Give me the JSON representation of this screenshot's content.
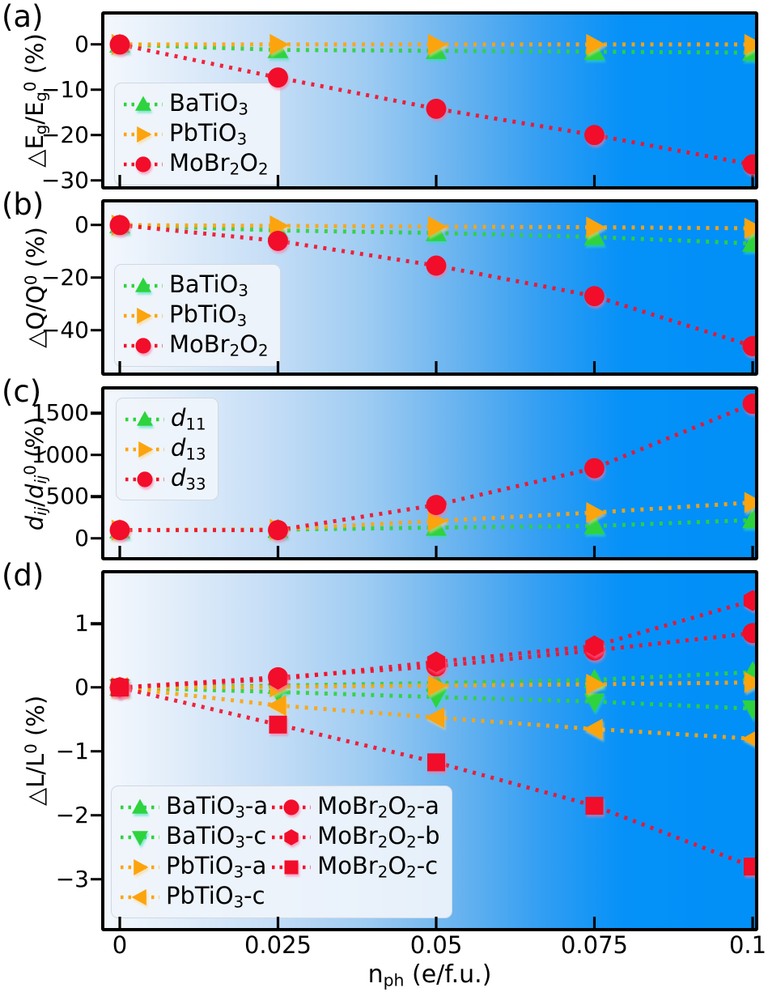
{
  "figure": {
    "xlabel_parts": [
      [
        "t",
        "n"
      ],
      [
        "s",
        "ph"
      ],
      [
        "t",
        " (e/f.u.)"
      ]
    ],
    "x_tick_labels": [
      "0",
      "0.025",
      "0.05",
      "0.075",
      "0.1"
    ],
    "colors": {
      "green": "#2ED33C",
      "orange": "#FCA40D",
      "red": "#F2112B",
      "panel_border": "#000000",
      "gradient_left": "#F4F8FD",
      "gradient_right": "#0090F7",
      "legend_bg": "#EFF4FB",
      "text": "#000000"
    }
  },
  "chart_data": {
    "type": "line",
    "x": [
      0,
      0.025,
      0.05,
      0.075,
      0.1
    ],
    "xlim": [
      -0.0025,
      0.1005
    ],
    "xlabel": "n_ph (e/f.u.)",
    "grid": false,
    "panels": [
      {
        "id": "a",
        "letter": "(a)",
        "ylabel": "dEg/Eg0 (%)",
        "ylabel_parts": [
          [
            "t",
            "△E"
          ],
          [
            "s",
            "g"
          ],
          [
            "t",
            "/E"
          ],
          [
            "s",
            "g"
          ],
          [
            "p",
            "0"
          ],
          [
            "t",
            " (%)"
          ]
        ],
        "ylim": [
          -31.3,
          6.6
        ],
        "yticks": [
          0,
          -10,
          -20,
          -30
        ],
        "legend_columns": 1,
        "series": [
          {
            "name": "BaTiO3",
            "label_parts": [
              [
                "t",
                "BaTiO"
              ],
              [
                "s",
                "3"
              ]
            ],
            "color": "green",
            "marker": "triangle-up",
            "values": [
              0,
              -1.2,
              -1.4,
              -1.6,
              -1.8
            ]
          },
          {
            "name": "PbTiO3",
            "label_parts": [
              [
                "t",
                "PbTiO"
              ],
              [
                "s",
                "3"
              ]
            ],
            "color": "orange",
            "marker": "triangle-right",
            "values": [
              0,
              0,
              0,
              0,
              0
            ]
          },
          {
            "name": "MoBr2O2",
            "label_parts": [
              [
                "t",
                "MoBr"
              ],
              [
                "s",
                "2"
              ],
              [
                "t",
                "O"
              ],
              [
                "s",
                "2"
              ]
            ],
            "color": "red",
            "marker": "circle",
            "values": [
              0,
              -7.3,
              -14.2,
              -20,
              -26.5
            ]
          }
        ]
      },
      {
        "id": "b",
        "letter": "(b)",
        "ylabel": "dQ/Q0 (%)",
        "ylabel_parts": [
          [
            "t",
            "△Q/Q"
          ],
          [
            "p",
            "0"
          ],
          [
            "t",
            " (%)"
          ]
        ],
        "ylim": [
          -56,
          8.6
        ],
        "yticks": [
          0,
          -20,
          -40
        ],
        "legend_columns": 1,
        "series": [
          {
            "name": "BaTiO3",
            "label_parts": [
              [
                "t",
                "BaTiO"
              ],
              [
                "s",
                "3"
              ]
            ],
            "color": "green",
            "marker": "triangle-up",
            "values": [
              0,
              -2,
              -3,
              -4.5,
              -7
            ]
          },
          {
            "name": "PbTiO3",
            "label_parts": [
              [
                "t",
                "PbTiO"
              ],
              [
                "s",
                "3"
              ]
            ],
            "color": "orange",
            "marker": "triangle-right",
            "values": [
              0,
              -0.3,
              -0.6,
              -0.8,
              -1.2
            ]
          },
          {
            "name": "MoBr2O2",
            "label_parts": [
              [
                "t",
                "MoBr"
              ],
              [
                "s",
                "2"
              ],
              [
                "t",
                "O"
              ],
              [
                "s",
                "2"
              ]
            ],
            "color": "red",
            "marker": "circle",
            "values": [
              0,
              -6,
              -15.4,
              -27,
              -46
            ]
          }
        ]
      },
      {
        "id": "c",
        "letter": "(c)",
        "ylabel": "dij/dij0 (%)",
        "ylabel_parts": [
          [
            "i",
            "d"
          ],
          [
            "si",
            "ij"
          ],
          [
            "t",
            "/"
          ],
          [
            "i",
            "d"
          ],
          [
            "si",
            "ij"
          ],
          [
            "p",
            "0"
          ],
          [
            "t",
            " (%)"
          ]
        ],
        "ylim": [
          -223,
          1781
        ],
        "yticks": [
          0,
          500,
          1000,
          1500
        ],
        "legend_columns": 1,
        "series": [
          {
            "name": "d11",
            "label_parts": [
              [
                "i",
                "d"
              ],
              [
                "s",
                "11"
              ]
            ],
            "color": "green",
            "marker": "triangle-up",
            "values": [
              100,
              105,
              130,
              150,
              220
            ]
          },
          {
            "name": "d13",
            "label_parts": [
              [
                "i",
                "d"
              ],
              [
                "s",
                "13"
              ]
            ],
            "color": "orange",
            "marker": "triangle-right",
            "values": [
              100,
              110,
              210,
              310,
              430
            ]
          },
          {
            "name": "d33",
            "label_parts": [
              [
                "i",
                "d"
              ],
              [
                "s",
                "33"
              ]
            ],
            "color": "red",
            "marker": "circle",
            "values": [
              100,
              100,
              400,
              840,
              1610
            ]
          }
        ]
      },
      {
        "id": "d",
        "letter": "(d)",
        "ylabel": "dL/L0 (%)",
        "ylabel_parts": [
          [
            "t",
            "△L/L"
          ],
          [
            "p",
            "0"
          ],
          [
            "t",
            " (%)"
          ]
        ],
        "ylim": [
          -3.76,
          1.785
        ],
        "yticks": [
          1,
          0,
          -1,
          -2,
          -3
        ],
        "legend_columns": 2,
        "series": [
          {
            "name": "BaTiO3-a",
            "label_parts": [
              [
                "t",
                "BaTiO"
              ],
              [
                "s",
                "3"
              ],
              [
                "t",
                "-a"
              ]
            ],
            "color": "green",
            "marker": "triangle-up",
            "values": [
              0,
              0.03,
              0.07,
              0.12,
              0.24
            ]
          },
          {
            "name": "BaTiO3-c",
            "label_parts": [
              [
                "t",
                "BaTiO"
              ],
              [
                "s",
                "3"
              ],
              [
                "t",
                "-c"
              ]
            ],
            "color": "green",
            "marker": "triangle-down",
            "values": [
              0,
              -0.07,
              -0.15,
              -0.22,
              -0.33
            ]
          },
          {
            "name": "PbTiO3-a",
            "label_parts": [
              [
                "t",
                "PbTiO"
              ],
              [
                "s",
                "3"
              ],
              [
                "t",
                "-a"
              ]
            ],
            "color": "orange",
            "marker": "triangle-right",
            "values": [
              0,
              0.01,
              0.03,
              0.05,
              0.08
            ]
          },
          {
            "name": "PbTiO3-c",
            "label_parts": [
              [
                "t",
                "PbTiO"
              ],
              [
                "s",
                "3"
              ],
              [
                "t",
                "-c"
              ]
            ],
            "color": "orange",
            "marker": "triangle-left",
            "values": [
              0,
              -0.28,
              -0.47,
              -0.65,
              -0.8
            ]
          },
          {
            "name": "MoBr2O2-a",
            "label_parts": [
              [
                "t",
                "MoBr"
              ],
              [
                "s",
                "2"
              ],
              [
                "t",
                "O"
              ],
              [
                "s",
                "2"
              ],
              [
                "t",
                "-a"
              ]
            ],
            "color": "red",
            "marker": "circle",
            "values": [
              0,
              0.16,
              0.33,
              0.58,
              0.85
            ]
          },
          {
            "name": "MoBr2O2-b",
            "label_parts": [
              [
                "t",
                "MoBr"
              ],
              [
                "s",
                "2"
              ],
              [
                "t",
                "O"
              ],
              [
                "s",
                "2"
              ],
              [
                "t",
                "-b"
              ]
            ],
            "color": "red",
            "marker": "hexagon",
            "values": [
              0,
              0.13,
              0.4,
              0.65,
              1.36
            ]
          },
          {
            "name": "MoBr2O2-c",
            "label_parts": [
              [
                "t",
                "MoBr"
              ],
              [
                "s",
                "2"
              ],
              [
                "t",
                "O"
              ],
              [
                "s",
                "2"
              ],
              [
                "t",
                "-c"
              ]
            ],
            "color": "red",
            "marker": "square",
            "values": [
              0,
              -0.58,
              -1.17,
              -1.85,
              -2.8
            ]
          }
        ]
      }
    ]
  }
}
